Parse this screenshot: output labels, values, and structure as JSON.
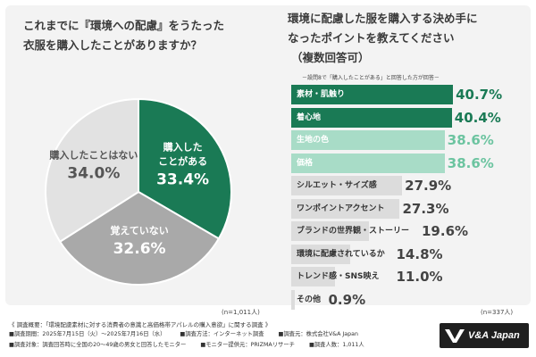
{
  "left_question": {
    "line1": "これまでに『環境への配慮』をうたった",
    "line2": "衣服を購入したことがありますか？"
  },
  "right_question": {
    "line1": "環境に配慮した服を購入する決め手に",
    "line2": "なったポイントを教えてください",
    "line3": "（複数回答可）",
    "note": "－設問8で「購入したことがある」と回答した方が回答－"
  },
  "left_n": "(n=1,011人)",
  "right_n": "(n=337人)",
  "chart_data": [
    {
      "type": "pie",
      "slices": [
        {
          "label_line1": "購入した",
          "label_line2": "ことがある",
          "value": 33.4,
          "display": "33.4%",
          "color": "#1a7a55",
          "text_color": "#ffffff"
        },
        {
          "label_line1": "覚えていない",
          "label_line2": "",
          "value": 32.6,
          "display": "32.6%",
          "color": "#a9a9a9",
          "text_color": "#ffffff"
        },
        {
          "label_line1": "購入したことはない",
          "label_line2": "",
          "value": 34.0,
          "display": "34.0%",
          "color": "#e2e2e2",
          "text_color": "#555555"
        }
      ]
    },
    {
      "type": "bar",
      "orientation": "horizontal",
      "categories": [
        "素材・肌触り",
        "着心地",
        "生地の色",
        "価格",
        "シルエット・サイズ感",
        "ワンポイントアクセント",
        "ブランドの世界観・ストーリー",
        "環境に配慮されているか",
        "トレンド感・SNS映え",
        "その他"
      ],
      "values": [
        40.7,
        40.4,
        38.6,
        38.6,
        27.9,
        27.3,
        19.6,
        14.8,
        11.0,
        0.9
      ],
      "value_labels": [
        "40.7%",
        "40.4%",
        "38.6%",
        "38.6%",
        "27.9%",
        "27.3%",
        "19.6%",
        "14.8%",
        "11.0%",
        "0.9%"
      ],
      "bar_colors": [
        "#1a7a55",
        "#1a7a55",
        "#a8dcc7",
        "#a8dcc7",
        "#dcdcdc",
        "#dcdcdc",
        "#dcdcdc",
        "#dcdcdc",
        "#dcdcdc",
        "#dcdcdc"
      ],
      "label_colors": [
        "#ffffff",
        "#ffffff",
        "#ffffff",
        "#ffffff",
        "#333333",
        "#333333",
        "#333333",
        "#333333",
        "#333333",
        "#333333"
      ],
      "value_colors": [
        "#1a7a55",
        "#1a7a55",
        "#6cc4a0",
        "#6cc4a0",
        "#444444",
        "#444444",
        "#444444",
        "#444444",
        "#444444",
        "#444444"
      ]
    }
  ],
  "footer": {
    "title": "《 調査概要：「環境配慮素材に対する消費者の意識と高価格帯アパレルの購入意欲」に関する調査 》",
    "period": "■調査期間：2025年7月15日（火）〜2025年7月16日（水）",
    "method": "■調査方法：インターネット調査",
    "company": "■調査元：株式会社V&A Japan",
    "target": "■調査対象：調査回答時に全国の20〜49歳の男女と回答したモニター",
    "provider": "■モニター提供元：PRIZMAリサーチ",
    "count": "■調査人数：1,011人"
  },
  "logo": {
    "text": "V&A Japan"
  }
}
